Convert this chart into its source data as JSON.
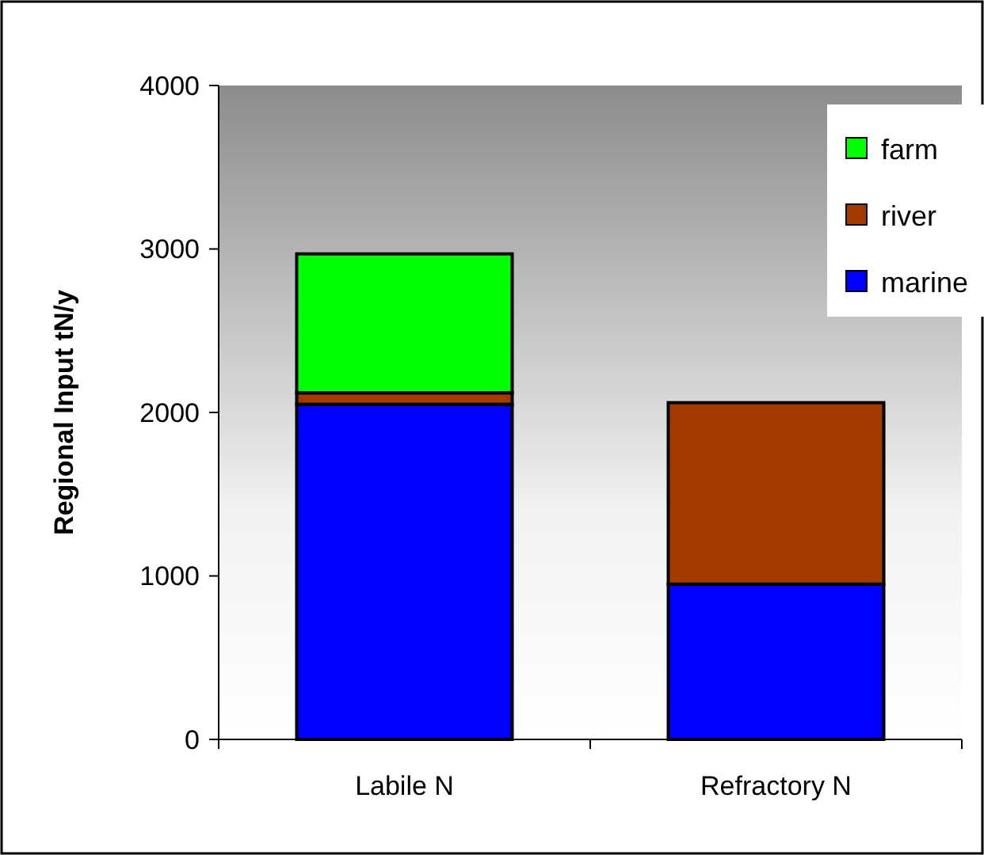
{
  "chart_data": {
    "type": "bar",
    "stacked": true,
    "ylabel": "Regional Input tN/y",
    "categories": [
      "Labile N",
      "Refractory N"
    ],
    "series": [
      {
        "name": "marine",
        "color": "#0000ff",
        "values": [
          2050,
          950
        ]
      },
      {
        "name": "river",
        "color": "#a33a00",
        "values": [
          70,
          1110
        ]
      },
      {
        "name": "farm",
        "color": "#00ff00",
        "values": [
          850,
          0
        ]
      }
    ],
    "ylim": [
      0,
      4000
    ],
    "yticks": [
      0,
      1000,
      2000,
      3000,
      4000
    ],
    "legend": "top right"
  }
}
